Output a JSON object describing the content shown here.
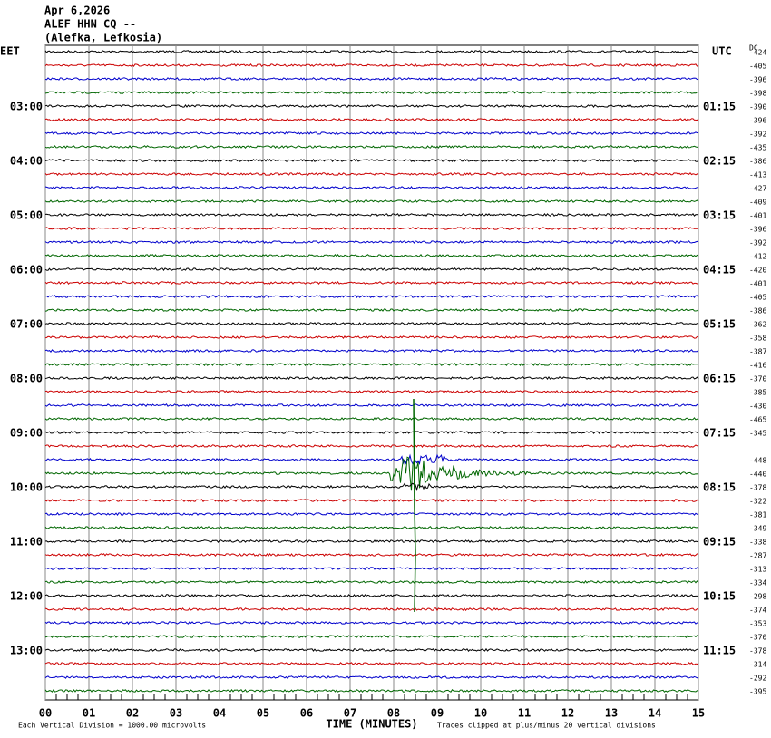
{
  "header": {
    "date": "Apr 6,2026",
    "station": "ALEF HHN CQ --",
    "location": "(Alefka, Lefkosia)"
  },
  "left_zone": "EET",
  "right_zone": "UTC",
  "dc_label": "DC",
  "left_times": [
    "03:00",
    "04:00",
    "05:00",
    "06:00",
    "07:00",
    "08:00",
    "09:00",
    "10:00",
    "11:00",
    "12:00",
    "13:00"
  ],
  "right_times": [
    "01:15",
    "02:15",
    "03:15",
    "04:15",
    "05:15",
    "06:15",
    "07:15",
    "08:15",
    "09:15",
    "10:15",
    "11:15"
  ],
  "dc_offsets": [
    "-424",
    "-405",
    "-396",
    "-398",
    "-390",
    "-396",
    "-392",
    "-435",
    "-386",
    "-413",
    "-427",
    "-409",
    "-401",
    "-396",
    "-392",
    "-412",
    "-420",
    "-401",
    "-405",
    "-386",
    "-362",
    "-358",
    "-387",
    "-416",
    "-370",
    "-385",
    "-430",
    "-465",
    "-345",
    null,
    "-448",
    "-440",
    "-378",
    "-322",
    "-381",
    "-349",
    "-338",
    "-287",
    "-313",
    "-334",
    "-298",
    "-374",
    "-353",
    "-370",
    "-378",
    "-314",
    "-292",
    "-395"
  ],
  "x_ticks": [
    "00",
    "01",
    "02",
    "03",
    "04",
    "05",
    "06",
    "07",
    "08",
    "09",
    "10",
    "11",
    "12",
    "13",
    "14",
    "15"
  ],
  "x_axis_label": "TIME (MINUTES)",
  "scale_note": "Each Vertical Division = 1000.00 microvolts",
  "clip_note": "Traces clipped at plus/minus 20 vertical divisions"
}
